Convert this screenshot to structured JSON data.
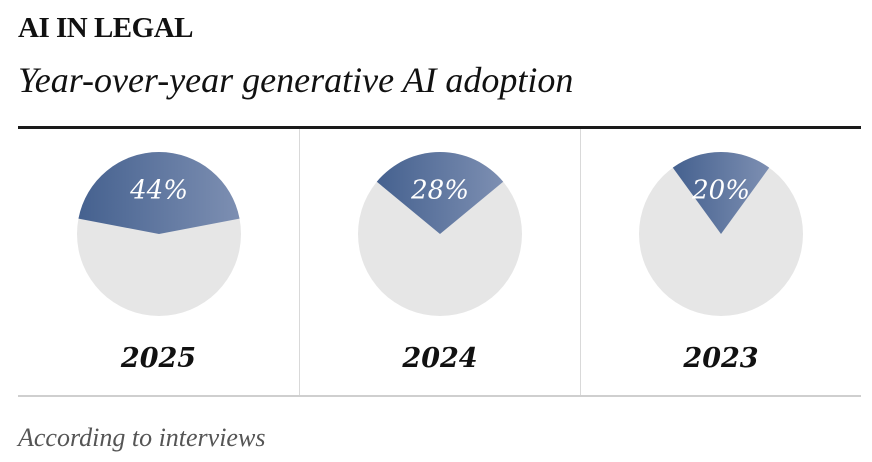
{
  "kicker": "AI IN LEGAL",
  "title": "Year-over-year generative AI adoption",
  "source": "According to interviews",
  "colors": {
    "slice_dark": "#45618f",
    "slice_light": "#7d8fb2",
    "remainder": "#e6e6e6"
  },
  "chart_data": [
    {
      "type": "pie",
      "label": "2025",
      "value": 44,
      "value_label": "44%"
    },
    {
      "type": "pie",
      "label": "2024",
      "value": 28,
      "value_label": "28%"
    },
    {
      "type": "pie",
      "label": "2023",
      "value": 20,
      "value_label": "20%"
    }
  ]
}
